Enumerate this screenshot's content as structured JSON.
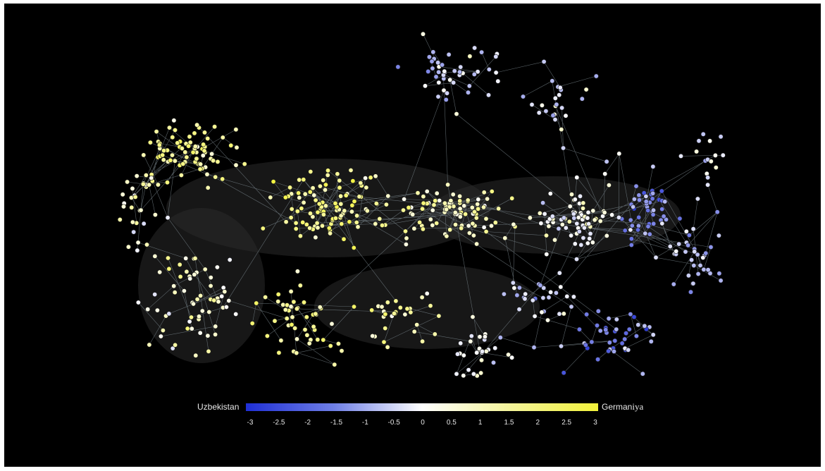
{
  "diagram": {
    "type": "network-graph",
    "background": "#000000",
    "edge_color": "#7f8c93",
    "hull_color": "#2a2a2a",
    "colorbar": {
      "left_label": "Uzbekistan",
      "right_label": "German",
      "right_label_suffix": "iya",
      "ticks": [
        "-3",
        "-2.5",
        "-2",
        "-1.5",
        "-1",
        "-0.5",
        "0",
        "0.5",
        "1",
        "1.5",
        "2",
        "2.5",
        "3"
      ],
      "range": [
        -3,
        3
      ],
      "colors": {
        "min": "#1f2fd6",
        "mid": "#ffffff",
        "max": "#f2f23a"
      }
    }
  }
}
